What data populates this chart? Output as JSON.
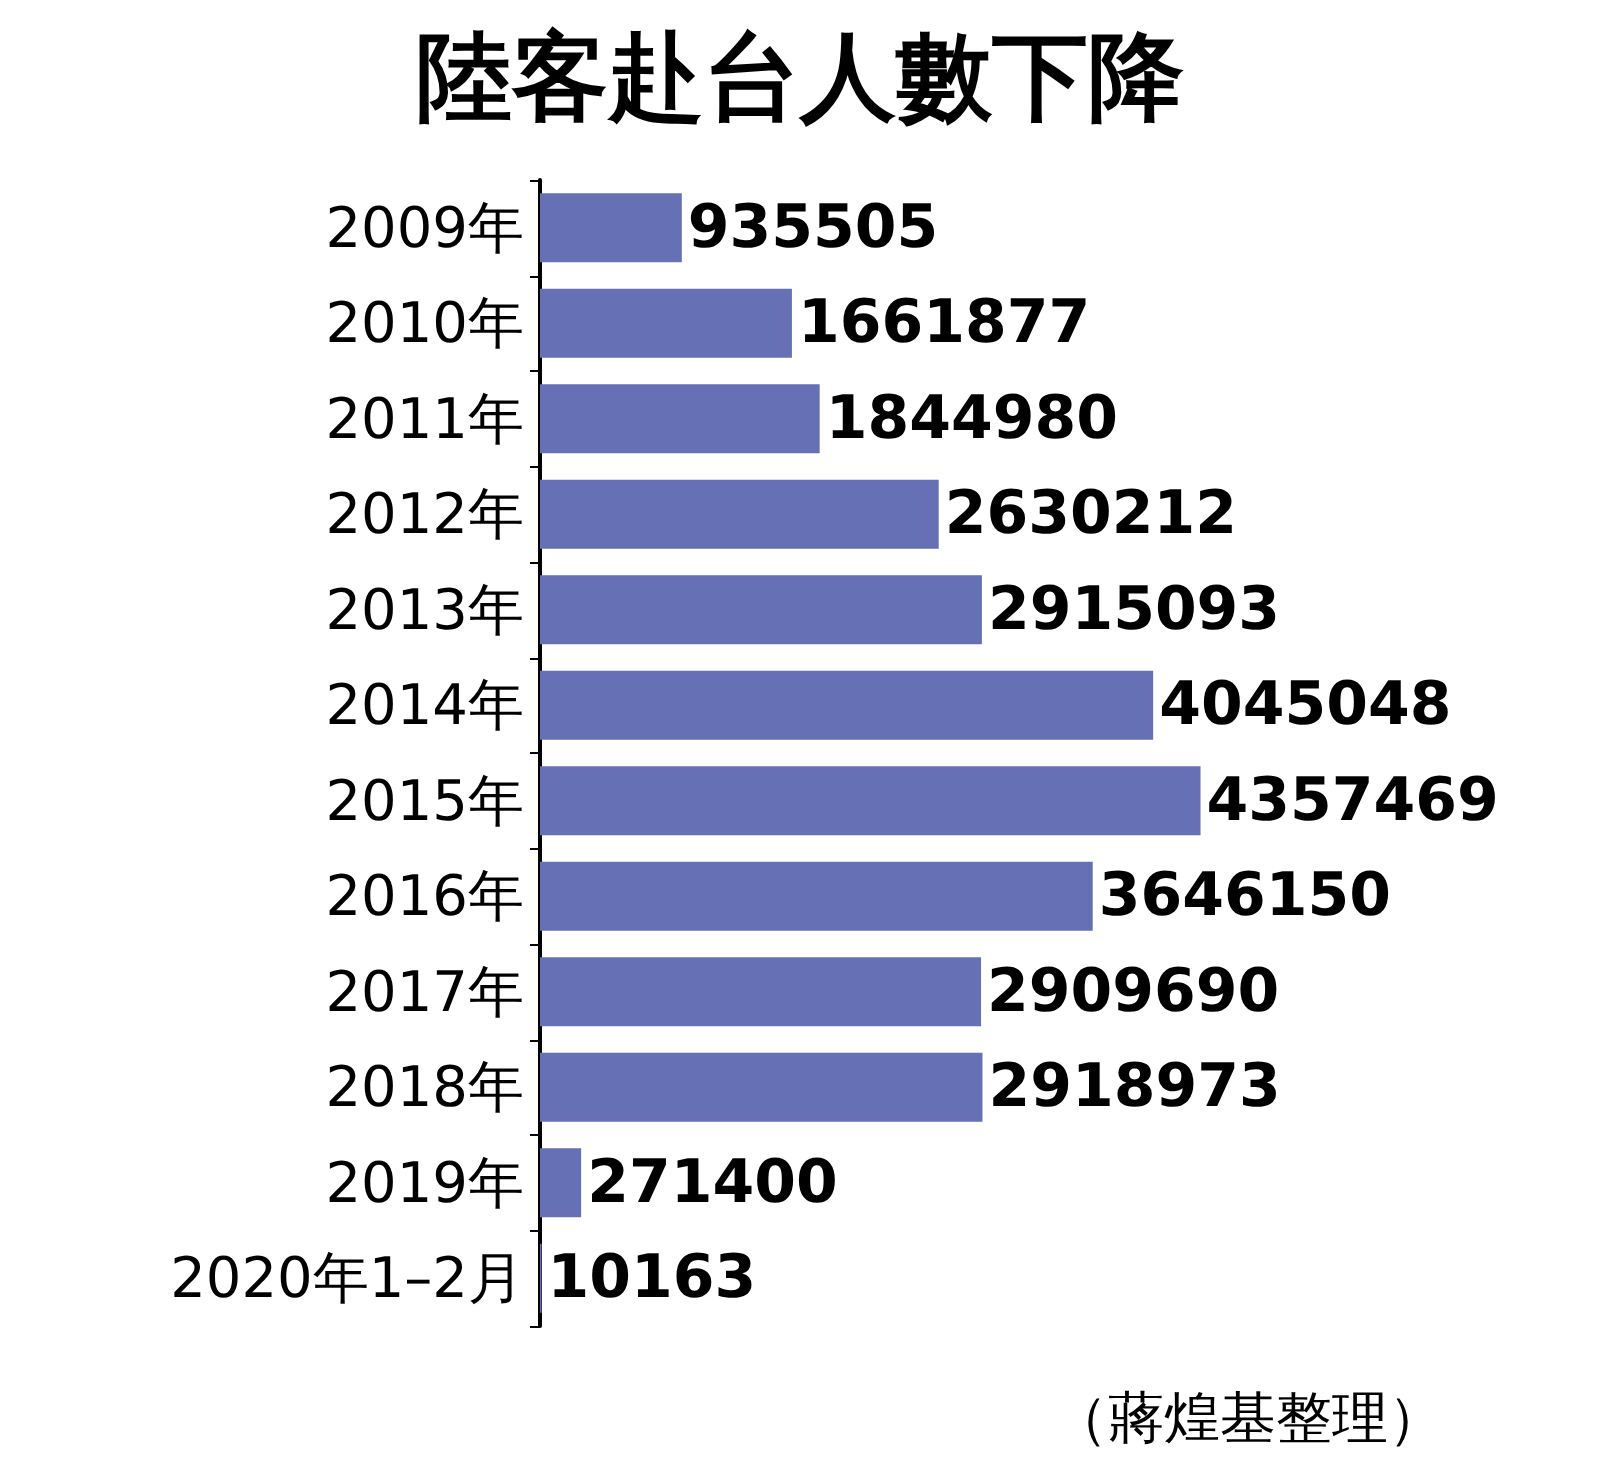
{
  "chart_data": {
    "type": "bar",
    "orientation": "horizontal",
    "title": "陸客赴台人數下降",
    "categories": [
      "2009年",
      "2010年",
      "2011年",
      "2012年",
      "2013年",
      "2014年",
      "2015年",
      "2016年",
      "2017年",
      "2018年",
      "2019年",
      "2020年1–2月"
    ],
    "values": [
      935505,
      1661877,
      1844980,
      2630212,
      2915093,
      4045048,
      4357469,
      3646150,
      2909690,
      2918973,
      271400,
      10163
    ],
    "color": "#6570b5",
    "data_labels": true,
    "annotations": [
      "（蔣煌基整理）"
    ]
  }
}
